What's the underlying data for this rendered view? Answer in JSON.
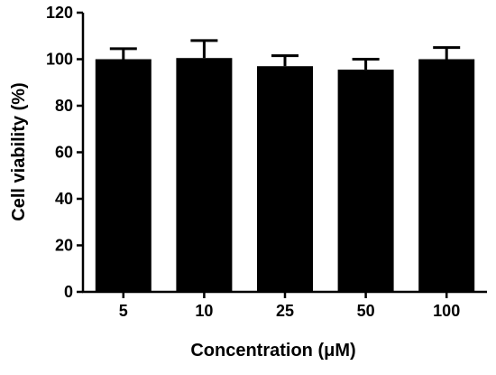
{
  "chart_data": {
    "type": "bar",
    "categories": [
      "5",
      "10",
      "25",
      "50",
      "100"
    ],
    "values": [
      100,
      100.5,
      97,
      95.5,
      100
    ],
    "error_upper": [
      4.5,
      7.5,
      4.5,
      4.5,
      5
    ],
    "xlabel": "Concentration (μM)",
    "ylabel": "Cell viability (%)",
    "ylim": [
      0,
      120
    ],
    "yticks": [
      0,
      20,
      40,
      60,
      80,
      100,
      120
    ],
    "grid": false,
    "colors": {
      "bar": "#000000",
      "axis": "#000000",
      "background": "#ffffff"
    }
  }
}
